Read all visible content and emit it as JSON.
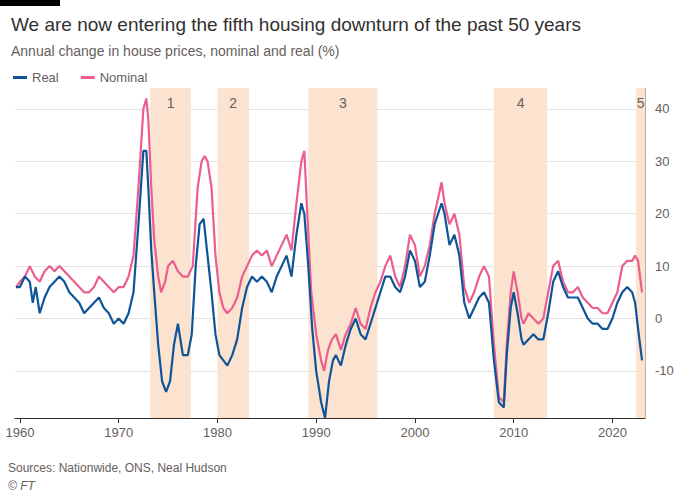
{
  "chart_data": {
    "type": "line",
    "title": "We are now entering the fifth housing downturn of the past 50 years",
    "subtitle": "Annual change in house prices, nominal and real (%)",
    "source": "Sources: Nationwide, ONS, Neal Hudson",
    "credit": "© FT",
    "grid": true,
    "legend": "top-left",
    "xlim": [
      1959.5,
      2023.3
    ],
    "xticks": [
      1960,
      1970,
      1980,
      1990,
      2000,
      2010,
      2020
    ],
    "ylim": [
      -19,
      44
    ],
    "yticks": [
      -10,
      0,
      10,
      20,
      30,
      40
    ],
    "bands": [
      {
        "start": 1973.2,
        "end": 1977.3,
        "label": "1"
      },
      {
        "start": 1980.0,
        "end": 1983.2,
        "label": "2"
      },
      {
        "start": 1989.2,
        "end": 1996.2,
        "label": "3"
      },
      {
        "start": 2008.0,
        "end": 2013.4,
        "label": "4"
      },
      {
        "start": 2022.4,
        "end": 2023.3,
        "label": "5"
      }
    ],
    "series": [
      {
        "name": "Real",
        "color": "#0f5499",
        "x": [
          1959.6,
          1960,
          1960.5,
          1961,
          1961.3,
          1961.6,
          1962,
          1962.5,
          1963,
          1963.5,
          1964,
          1964.5,
          1965,
          1965.5,
          1966,
          1966.5,
          1967,
          1967.5,
          1968,
          1968.5,
          1969,
          1969.5,
          1970,
          1970.5,
          1971,
          1971.5,
          1972,
          1972.5,
          1972.8,
          1973,
          1973.3,
          1973.6,
          1974,
          1974.4,
          1974.8,
          1975.2,
          1975.6,
          1976,
          1976.5,
          1977,
          1977.4,
          1977.8,
          1978.2,
          1978.6,
          1979,
          1979.4,
          1979.8,
          1980.2,
          1980.6,
          1981,
          1981.5,
          1982,
          1982.5,
          1983,
          1983.5,
          1984,
          1984.5,
          1985,
          1985.5,
          1986,
          1986.5,
          1987,
          1987.5,
          1988,
          1988.5,
          1988.8,
          1989.2,
          1989.6,
          1990,
          1990.5,
          1990.9,
          1991.3,
          1991.7,
          1992,
          1992.5,
          1993,
          1993.5,
          1994,
          1994.5,
          1995,
          1995.5,
          1996,
          1996.5,
          1997,
          1997.5,
          1998,
          1998.5,
          1999,
          1999.5,
          2000,
          2000.5,
          2001,
          2001.5,
          2002,
          2002.7,
          2003,
          2003.5,
          2004,
          2004.5,
          2005,
          2005.5,
          2006,
          2006.5,
          2007,
          2007.5,
          2008,
          2008.5,
          2009,
          2009.3,
          2009.7,
          2010,
          2010.4,
          2010.8,
          2011,
          2011.5,
          2012,
          2012.5,
          2013,
          2013.5,
          2014,
          2014.5,
          2015,
          2015.5,
          2016,
          2016.5,
          2017,
          2017.5,
          2018,
          2018.5,
          2019,
          2019.5,
          2020,
          2020.5,
          2021,
          2021.5,
          2022,
          2022.3,
          2022.6,
          2022.8,
          2023
        ],
        "values": [
          6,
          6,
          8,
          7,
          3,
          6,
          1,
          4,
          6,
          7,
          8,
          7,
          5,
          4,
          3,
          1,
          2,
          3,
          4,
          2,
          1,
          -1,
          0,
          -1,
          1,
          5,
          18,
          32,
          32,
          25,
          13,
          5,
          -5,
          -12,
          -14,
          -12,
          -5,
          -1,
          -7,
          -7,
          -3,
          10,
          18,
          19,
          12,
          5,
          -3,
          -7,
          -8,
          -9,
          -7,
          -4,
          2,
          6,
          8,
          7,
          8,
          7,
          5,
          8,
          10,
          12,
          8,
          16,
          22,
          20,
          10,
          -2,
          -10,
          -16,
          -19,
          -12,
          -8,
          -7,
          -9,
          -5,
          -2,
          0,
          -3,
          -4,
          -1,
          2,
          5,
          8,
          8,
          6,
          5,
          8,
          13,
          11,
          6,
          7,
          12,
          18,
          22,
          20,
          14,
          16,
          12,
          3,
          0,
          2,
          4,
          5,
          3,
          -8,
          -16,
          -17,
          -7,
          2,
          5,
          1,
          -4,
          -5,
          -4,
          -3,
          -4,
          -4,
          1,
          7,
          9,
          6,
          4,
          4,
          4,
          2,
          0,
          -1,
          -1,
          -2,
          -2,
          0,
          3,
          5,
          6,
          5,
          3,
          -2,
          -5,
          -8
        ]
      },
      {
        "name": "Nominal",
        "color": "#eb5e8d",
        "x": [
          1959.6,
          1960,
          1960.5,
          1961,
          1961.5,
          1962,
          1962.5,
          1963,
          1963.5,
          1964,
          1964.5,
          1965,
          1965.5,
          1966,
          1966.5,
          1967,
          1967.5,
          1968,
          1968.5,
          1969,
          1969.5,
          1970,
          1970.5,
          1971,
          1971.5,
          1972,
          1972.5,
          1972.8,
          1973,
          1973.3,
          1973.6,
          1974,
          1974.3,
          1974.7,
          1975,
          1975.5,
          1976,
          1976.5,
          1977,
          1977.5,
          1978,
          1978.4,
          1978.7,
          1979,
          1979.4,
          1979.8,
          1980.2,
          1980.6,
          1981,
          1981.5,
          1982,
          1982.5,
          1983,
          1983.5,
          1984,
          1984.5,
          1985,
          1985.5,
          1986,
          1986.5,
          1987,
          1987.5,
          1988,
          1988.5,
          1988.8,
          1989.1,
          1989.5,
          1990,
          1990.5,
          1990.8,
          1991.2,
          1991.6,
          1992,
          1992.5,
          1993,
          1993.5,
          1994,
          1994.5,
          1995,
          1995.5,
          1996,
          1996.5,
          1997,
          1997.5,
          1998,
          1998.5,
          1999,
          1999.5,
          2000,
          2000.5,
          2001,
          2001.5,
          2002,
          2002.7,
          2003,
          2003.5,
          2004,
          2004.5,
          2005,
          2005.5,
          2006,
          2006.5,
          2007,
          2007.5,
          2008,
          2008.5,
          2009,
          2009.3,
          2009.7,
          2010,
          2010.4,
          2010.8,
          2011,
          2011.5,
          2012,
          2012.5,
          2013,
          2013.5,
          2014,
          2014.5,
          2015,
          2015.5,
          2016,
          2016.5,
          2017,
          2017.5,
          2018,
          2018.5,
          2019,
          2019.5,
          2020,
          2020.5,
          2021,
          2021.5,
          2022,
          2022.3,
          2022.6,
          2022.8,
          2023
        ],
        "values": [
          6,
          7,
          8,
          10,
          8,
          7,
          9,
          10,
          9,
          10,
          9,
          8,
          7,
          6,
          5,
          5,
          6,
          8,
          7,
          6,
          5,
          6,
          6,
          8,
          12,
          25,
          40,
          42,
          38,
          25,
          15,
          8,
          5,
          7,
          10,
          11,
          9,
          8,
          8,
          10,
          25,
          30,
          31,
          30,
          25,
          12,
          5,
          2,
          1,
          2,
          4,
          8,
          10,
          12,
          13,
          12,
          13,
          10,
          12,
          14,
          16,
          13,
          22,
          30,
          32,
          20,
          5,
          -3,
          -8,
          -10,
          -6,
          -4,
          -3,
          -6,
          -3,
          -1,
          2,
          -1,
          -2,
          2,
          5,
          7,
          10,
          12,
          8,
          6,
          10,
          16,
          14,
          8,
          10,
          14,
          20,
          26,
          22,
          18,
          20,
          16,
          6,
          3,
          5,
          8,
          10,
          8,
          -5,
          -15,
          -16,
          -5,
          5,
          9,
          5,
          0,
          -1,
          1,
          0,
          -1,
          0,
          5,
          10,
          11,
          7,
          5,
          5,
          6,
          4,
          3,
          2,
          2,
          1,
          1,
          3,
          5,
          10,
          11,
          11,
          12,
          11,
          8,
          5
        ]
      }
    ]
  }
}
